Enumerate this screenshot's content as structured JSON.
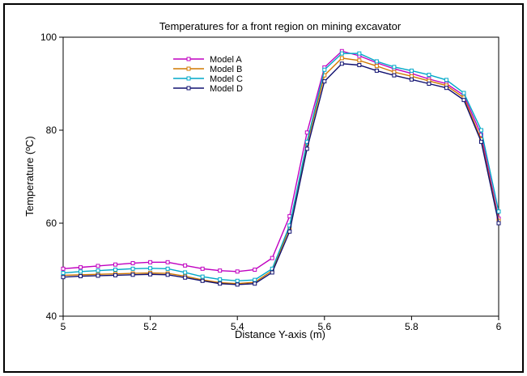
{
  "chart_data": {
    "type": "line",
    "title": "Temperatures for a front region on mining excavator",
    "xlabel": "Distance Y-axis (m)",
    "ylabel": "Temperature (ºC)",
    "xlim": [
      5,
      6
    ],
    "ylim": [
      40,
      100
    ],
    "xticks": [
      "5",
      "5.2",
      "5.4",
      "5.6",
      "5.8",
      "6"
    ],
    "yticks": [
      "40",
      "60",
      "80",
      "100"
    ],
    "grid": false,
    "legend_position": "top-left",
    "x": [
      5.0,
      5.04,
      5.08,
      5.12,
      5.16,
      5.2,
      5.24,
      5.28,
      5.32,
      5.36,
      5.4,
      5.44,
      5.48,
      5.52,
      5.56,
      5.6,
      5.64,
      5.68,
      5.72,
      5.76,
      5.8,
      5.84,
      5.88,
      5.92,
      5.96,
      6.0
    ],
    "series": [
      {
        "name": "Model A",
        "color": "#c000c0",
        "values": [
          50.2,
          50.5,
          50.8,
          51.1,
          51.4,
          51.6,
          51.6,
          50.9,
          50.2,
          49.8,
          49.6,
          50.0,
          52.5,
          61.5,
          79.5,
          93.5,
          97.0,
          96.0,
          94.5,
          93.2,
          92.2,
          91.0,
          90.0,
          87.5,
          79.0,
          61.0
        ]
      },
      {
        "name": "Model B",
        "color": "#d07800",
        "values": [
          48.8,
          48.9,
          49.0,
          49.1,
          49.2,
          49.3,
          49.2,
          48.6,
          47.8,
          47.2,
          47.0,
          47.3,
          49.8,
          59.0,
          77.0,
          91.8,
          95.5,
          95.0,
          93.8,
          92.5,
          91.6,
          90.6,
          89.6,
          87.0,
          78.0,
          60.5
        ]
      },
      {
        "name": "Model C",
        "color": "#00a8c8",
        "values": [
          49.3,
          49.6,
          49.8,
          50.0,
          50.2,
          50.3,
          50.2,
          49.4,
          48.5,
          47.9,
          47.6,
          47.8,
          50.2,
          59.5,
          77.5,
          93.0,
          96.5,
          96.5,
          94.8,
          93.6,
          92.8,
          91.9,
          90.8,
          88.0,
          80.0,
          62.5
        ]
      },
      {
        "name": "Model D",
        "color": "#101070",
        "values": [
          48.4,
          48.6,
          48.7,
          48.8,
          48.9,
          49.0,
          48.9,
          48.3,
          47.6,
          47.0,
          46.8,
          47.0,
          49.4,
          58.2,
          76.0,
          90.5,
          94.3,
          94.0,
          92.8,
          91.8,
          90.9,
          90.0,
          89.1,
          86.5,
          77.5,
          60.0
        ]
      }
    ]
  }
}
